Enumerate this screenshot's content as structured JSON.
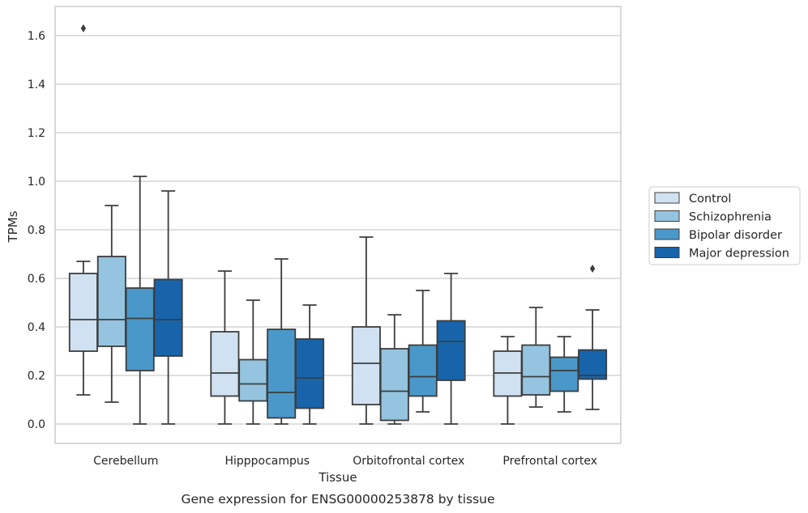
{
  "chart_data": {
    "type": "box",
    "title": "",
    "caption": "Gene expression for ENSG00000253878 by tissue",
    "xlabel": "Tissue",
    "ylabel": "TPMs",
    "ylim": [
      -0.08,
      1.72
    ],
    "yticks": [
      0.0,
      0.2,
      0.4,
      0.6,
      0.8,
      1.0,
      1.2,
      1.4,
      1.6
    ],
    "ytick_labels": [
      "0.0",
      "0.2",
      "0.4",
      "0.6",
      "0.8",
      "1.0",
      "1.2",
      "1.4",
      "1.6"
    ],
    "grid": "horizontal",
    "legend_position": "right",
    "categories": [
      "Cerebellum",
      "Hipppocampus",
      "Orbitofrontal cortex",
      "Prefrontal cortex"
    ],
    "series": [
      {
        "name": "Control",
        "color": "#d0e1f2",
        "boxes": [
          {
            "whislo": 0.12,
            "q1": 0.3,
            "med": 0.43,
            "q3": 0.62,
            "whishi": 0.67,
            "fliers": [
              1.63
            ]
          },
          {
            "whislo": 0.0,
            "q1": 0.115,
            "med": 0.21,
            "q3": 0.38,
            "whishi": 0.63,
            "fliers": []
          },
          {
            "whislo": 0.0,
            "q1": 0.08,
            "med": 0.25,
            "q3": 0.4,
            "whishi": 0.77,
            "fliers": []
          },
          {
            "whislo": 0.0,
            "q1": 0.115,
            "med": 0.21,
            "q3": 0.3,
            "whishi": 0.36,
            "fliers": []
          }
        ]
      },
      {
        "name": "Schizophrenia",
        "color": "#94c4df",
        "boxes": [
          {
            "whislo": 0.09,
            "q1": 0.32,
            "med": 0.43,
            "q3": 0.69,
            "whishi": 0.9,
            "fliers": []
          },
          {
            "whislo": 0.0,
            "q1": 0.095,
            "med": 0.165,
            "q3": 0.265,
            "whishi": 0.51,
            "fliers": []
          },
          {
            "whislo": 0.0,
            "q1": 0.015,
            "med": 0.135,
            "q3": 0.31,
            "whishi": 0.45,
            "fliers": []
          },
          {
            "whislo": 0.07,
            "q1": 0.12,
            "med": 0.195,
            "q3": 0.325,
            "whishi": 0.48,
            "fliers": []
          }
        ]
      },
      {
        "name": "Bipolar disorder",
        "color": "#4a98c9",
        "boxes": [
          {
            "whislo": 0.0,
            "q1": 0.22,
            "med": 0.435,
            "q3": 0.56,
            "whishi": 1.02,
            "fliers": []
          },
          {
            "whislo": 0.0,
            "q1": 0.025,
            "med": 0.13,
            "q3": 0.39,
            "whishi": 0.68,
            "fliers": []
          },
          {
            "whislo": 0.05,
            "q1": 0.115,
            "med": 0.195,
            "q3": 0.325,
            "whishi": 0.55,
            "fliers": []
          },
          {
            "whislo": 0.05,
            "q1": 0.135,
            "med": 0.22,
            "q3": 0.275,
            "whishi": 0.36,
            "fliers": []
          }
        ]
      },
      {
        "name": "Major depression",
        "color": "#1764ab",
        "boxes": [
          {
            "whislo": 0.0,
            "q1": 0.28,
            "med": 0.43,
            "q3": 0.595,
            "whishi": 0.96,
            "fliers": []
          },
          {
            "whislo": 0.0,
            "q1": 0.065,
            "med": 0.19,
            "q3": 0.35,
            "whishi": 0.49,
            "fliers": []
          },
          {
            "whislo": 0.0,
            "q1": 0.18,
            "med": 0.34,
            "q3": 0.425,
            "whishi": 0.62,
            "fliers": []
          },
          {
            "whislo": 0.06,
            "q1": 0.185,
            "med": 0.2,
            "q3": 0.305,
            "whishi": 0.47,
            "fliers": [
              0.64
            ]
          }
        ]
      }
    ]
  },
  "colors": {
    "box_edge": "#3d3d3d",
    "grid": "#cccccc",
    "axes_edge": "#cccccc",
    "text": "#262626"
  }
}
